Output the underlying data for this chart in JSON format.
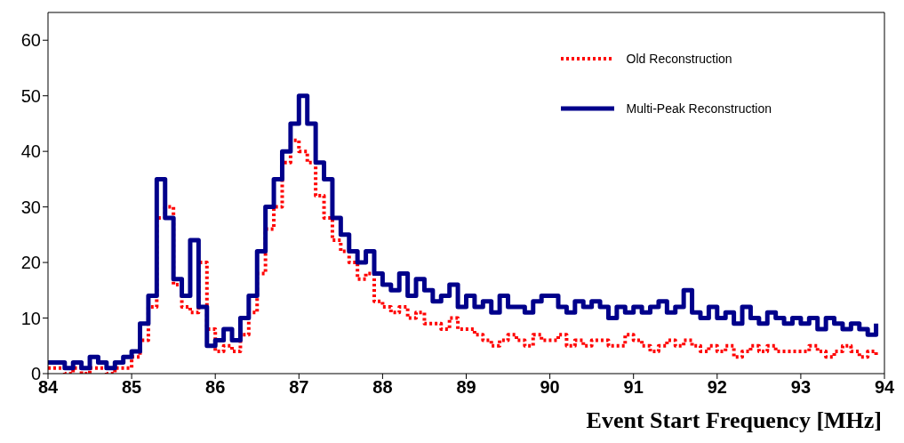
{
  "chart_data": {
    "type": "step",
    "xlabel": "Event Start Frequency [MHz]",
    "x": [
      84.0,
      84.1,
      84.2,
      84.3,
      84.4,
      84.5,
      84.6,
      84.7,
      84.8,
      84.9,
      85.0,
      85.1,
      85.2,
      85.3,
      85.4,
      85.5,
      85.6,
      85.7,
      85.8,
      85.9,
      86.0,
      86.1,
      86.2,
      86.3,
      86.4,
      86.5,
      86.6,
      86.7,
      86.8,
      86.9,
      87.0,
      87.1,
      87.2,
      87.3,
      87.4,
      87.5,
      87.6,
      87.7,
      87.8,
      87.9,
      88.0,
      88.1,
      88.2,
      88.3,
      88.4,
      88.5,
      88.6,
      88.7,
      88.8,
      88.9,
      89.0,
      89.1,
      89.2,
      89.3,
      89.4,
      89.5,
      89.6,
      89.7,
      89.8,
      89.9,
      90.0,
      90.1,
      90.2,
      90.3,
      90.4,
      90.5,
      90.6,
      90.7,
      90.8,
      90.9,
      91.0,
      91.1,
      91.2,
      91.3,
      91.4,
      91.5,
      91.6,
      91.7,
      91.8,
      91.9,
      92.0,
      92.1,
      92.2,
      92.3,
      92.4,
      92.5,
      92.6,
      92.7,
      92.8,
      92.9,
      93.0,
      93.1,
      93.2,
      93.3,
      93.4,
      93.5,
      93.6,
      93.7,
      93.8,
      93.9
    ],
    "series": [
      {
        "name": "Old Reconstruction",
        "color": "#ff0000",
        "line_style": "dotted",
        "values": [
          1,
          1,
          0,
          1,
          0,
          1,
          1,
          0,
          1,
          1,
          3,
          6,
          12,
          28,
          30,
          16,
          12,
          11,
          20,
          8,
          4,
          5,
          4,
          7,
          11,
          18,
          26,
          30,
          38,
          42,
          40,
          38,
          32,
          28,
          24,
          22,
          20,
          17,
          18,
          13,
          12,
          11,
          12,
          10,
          11,
          9,
          9,
          8,
          10,
          8,
          8,
          7,
          6,
          5,
          6,
          7,
          6,
          5,
          7,
          6,
          6,
          7,
          5,
          6,
          5,
          6,
          6,
          5,
          5,
          7,
          6,
          5,
          4,
          5,
          6,
          5,
          6,
          5,
          4,
          5,
          4,
          5,
          3,
          4,
          5,
          4,
          5,
          4,
          4,
          4,
          4,
          5,
          4,
          3,
          4,
          5,
          4,
          3,
          4,
          3
        ]
      },
      {
        "name": "Multi-Peak Reconstruction",
        "color": "#00008b",
        "line_style": "solid",
        "values": [
          2,
          2,
          1,
          2,
          1,
          3,
          2,
          1,
          2,
          3,
          4,
          9,
          14,
          35,
          28,
          17,
          14,
          24,
          12,
          5,
          6,
          8,
          6,
          10,
          14,
          22,
          30,
          35,
          40,
          45,
          50,
          45,
          38,
          35,
          28,
          25,
          22,
          20,
          22,
          18,
          16,
          15,
          18,
          14,
          17,
          15,
          13,
          14,
          16,
          12,
          14,
          12,
          13,
          11,
          14,
          12,
          12,
          11,
          13,
          14,
          14,
          12,
          11,
          13,
          12,
          13,
          12,
          10,
          12,
          11,
          12,
          11,
          12,
          13,
          11,
          12,
          15,
          11,
          10,
          12,
          10,
          11,
          9,
          12,
          10,
          9,
          11,
          10,
          9,
          10,
          9,
          10,
          8,
          10,
          9,
          8,
          9,
          8,
          7,
          9
        ]
      }
    ],
    "xlim": [
      84,
      94
    ],
    "xticks": [
      84,
      85,
      86,
      87,
      88,
      89,
      90,
      91,
      92,
      93,
      94
    ],
    "ylim": [
      0,
      65
    ],
    "yticks": [
      0,
      10,
      20,
      30,
      40,
      50,
      60
    ],
    "grid": false,
    "legend": "top right",
    "marker": "none"
  }
}
